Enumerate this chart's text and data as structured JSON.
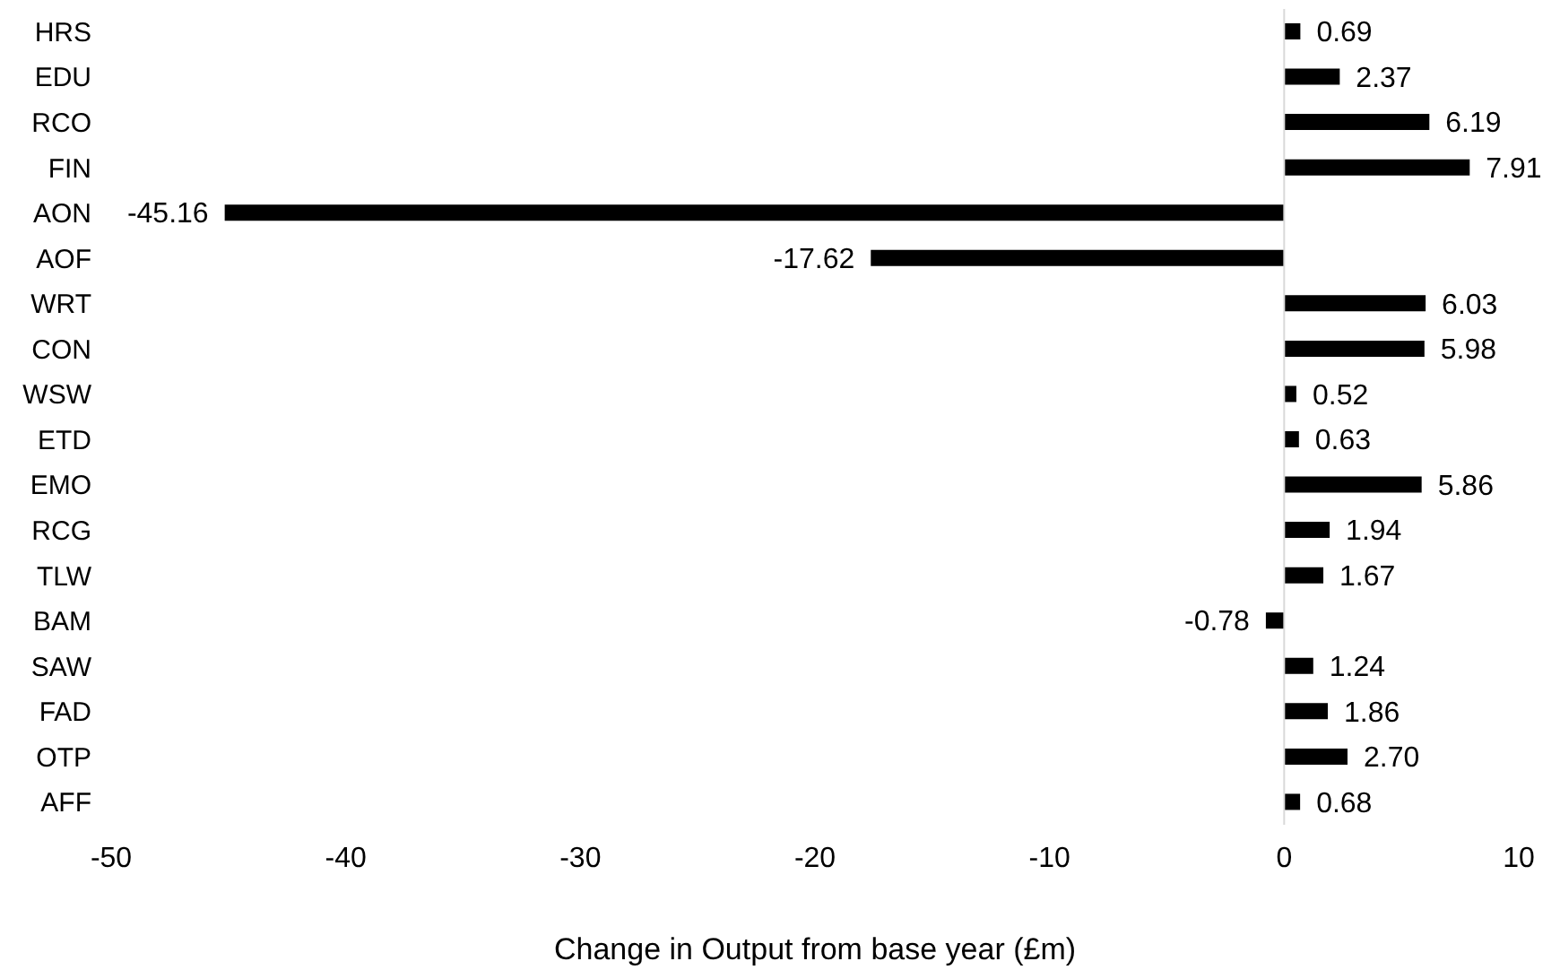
{
  "chart_data": {
    "type": "bar",
    "orientation": "horizontal",
    "categories": [
      "HRS",
      "EDU",
      "RCO",
      "FIN",
      "AON",
      "AOF",
      "WRT",
      "CON",
      "WSW",
      "ETD",
      "EMO",
      "RCG",
      "TLW",
      "BAM",
      "SAW",
      "FAD",
      "OTP",
      "AFF"
    ],
    "values": [
      0.69,
      2.37,
      6.19,
      7.91,
      -45.16,
      -17.62,
      6.03,
      5.98,
      0.52,
      0.63,
      5.86,
      1.94,
      1.67,
      -0.78,
      1.24,
      1.86,
      2.7,
      0.68
    ],
    "value_labels": [
      "0.69",
      "2.37",
      "6.19",
      "7.91",
      "-45.16",
      "-17.62",
      "6.03",
      "5.98",
      "0.52",
      "0.63",
      "5.86",
      "1.94",
      "1.67",
      "-0.78",
      "1.24",
      "1.86",
      "2.70",
      "0.68"
    ],
    "color": "#000000",
    "xlabel": "Change in Output from base year (£m)",
    "xlim": [
      -50,
      10
    ],
    "xticks": [
      -50,
      -40,
      -30,
      -20,
      -10,
      0,
      10
    ]
  }
}
